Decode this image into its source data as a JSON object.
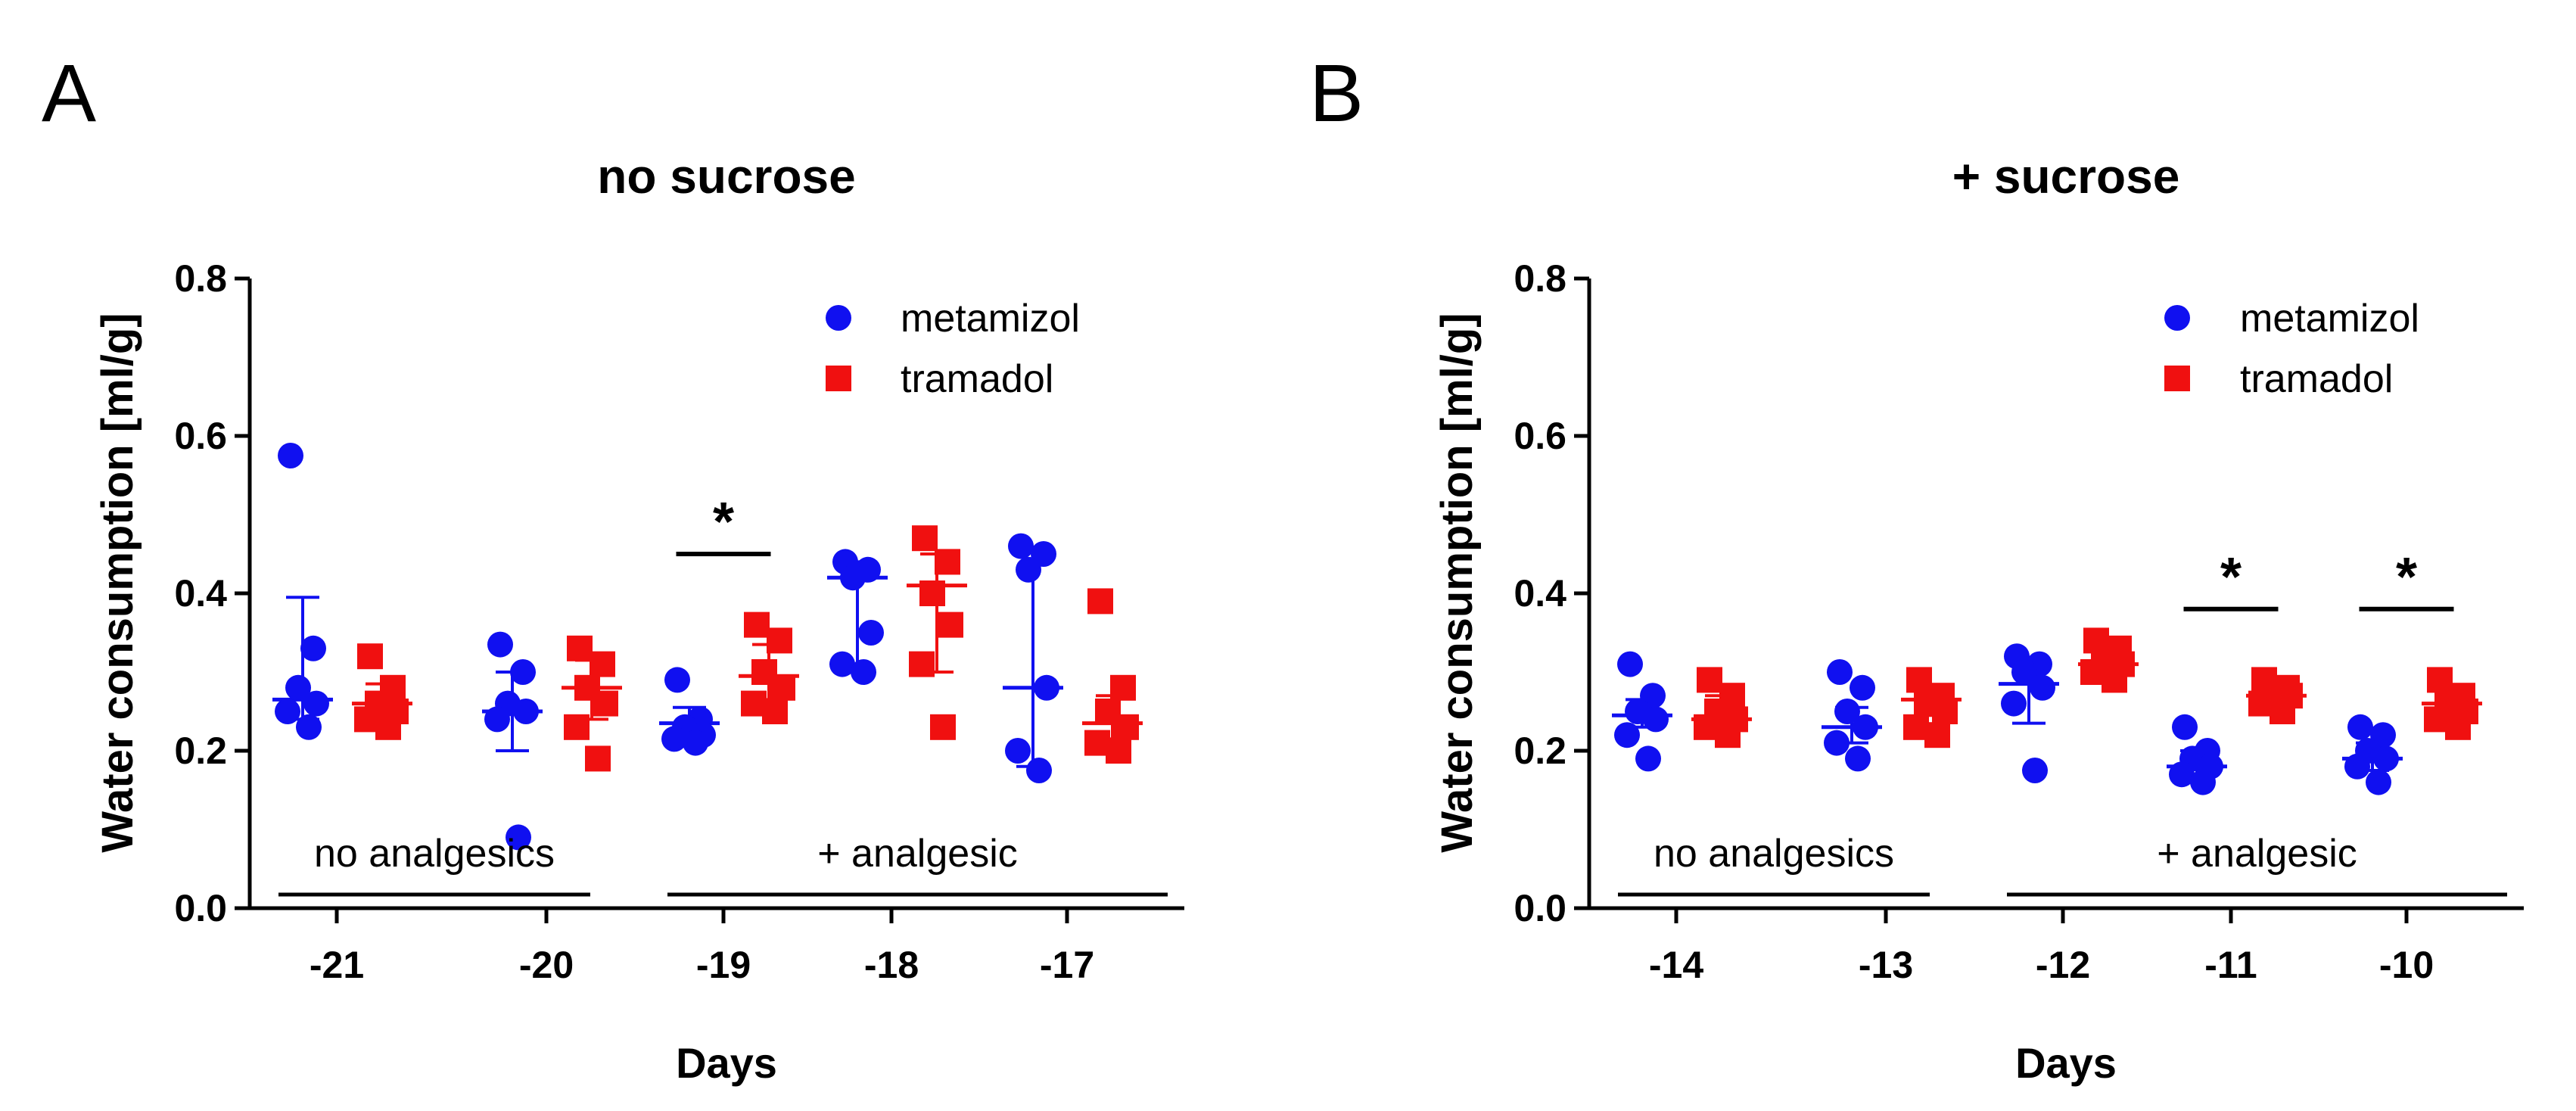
{
  "colors": {
    "metamizol": "#1010F0",
    "tramadol": "#F01010",
    "axis": "#000000"
  },
  "panels": [
    {
      "letter": "A",
      "title": "no sucrose",
      "ylabel": "Water consumption [ml/g]",
      "xlabel": "Days",
      "y_ticks": [
        "0.0",
        "0.2",
        "0.4",
        "0.6",
        "0.8"
      ],
      "legend": {
        "metamizol": "metamizol",
        "tramadol": "tramadol"
      },
      "phase_labels": [
        "no analgesics",
        "+ analgesic"
      ],
      "significance_marker": "*"
    },
    {
      "letter": "B",
      "title": "+ sucrose",
      "ylabel": "Water consumption [ml/g]",
      "xlabel": "Days",
      "y_ticks": [
        "0.0",
        "0.2",
        "0.4",
        "0.6",
        "0.8"
      ],
      "legend": {
        "metamizol": "metamizol",
        "tramadol": "tramadol"
      },
      "phase_labels": [
        "no analgesics",
        "+ analgesic"
      ],
      "significance_marker": "*"
    }
  ],
  "chart_data": [
    {
      "type": "scatter",
      "title": "no sucrose",
      "xlabel": "Days",
      "ylabel": "Water consumption [ml/g]",
      "ylim": [
        0,
        0.8
      ],
      "categories": [
        "-21",
        "-20",
        "-19",
        "-18",
        "-17"
      ],
      "phases": [
        {
          "label": "no analgesics",
          "categories": [
            "-21",
            "-20"
          ]
        },
        {
          "label": "+ analgesic",
          "categories": [
            "-19",
            "-18",
            "-17"
          ]
        }
      ],
      "series": [
        {
          "name": "metamizol",
          "marker": "circle",
          "points": [
            [
              0.575,
              0.33,
              0.28,
              0.26,
              0.25,
              0.23
            ],
            [
              0.335,
              0.3,
              0.26,
              0.25,
              0.24,
              0.09
            ],
            [
              0.29,
              0.24,
              0.23,
              0.22,
              0.215,
              0.21
            ],
            [
              0.44,
              0.43,
              0.42,
              0.35,
              0.31,
              0.3
            ],
            [
              0.46,
              0.45,
              0.43,
              0.28,
              0.2,
              0.175
            ]
          ],
          "center": [
            0.265,
            0.25,
            0.235,
            0.42,
            0.28
          ],
          "error_low": [
            0.24,
            0.2,
            0.215,
            0.3,
            0.18
          ],
          "error_high": [
            0.395,
            0.3,
            0.255,
            0.44,
            0.455
          ]
        },
        {
          "name": "tramadol",
          "marker": "square",
          "points": [
            [
              0.32,
              0.28,
              0.26,
              0.25,
              0.24,
              0.23
            ],
            [
              0.33,
              0.31,
              0.28,
              0.26,
              0.23,
              0.19
            ],
            [
              0.36,
              0.34,
              0.3,
              0.28,
              0.26,
              0.25
            ],
            [
              0.47,
              0.44,
              0.4,
              0.36,
              0.31,
              0.23
            ],
            [
              0.39,
              0.28,
              0.25,
              0.23,
              0.21,
              0.2
            ]
          ],
          "center": [
            0.26,
            0.28,
            0.295,
            0.41,
            0.235
          ],
          "error_low": [
            0.235,
            0.24,
            0.265,
            0.3,
            0.215
          ],
          "error_high": [
            0.285,
            0.315,
            0.335,
            0.45,
            0.27
          ]
        }
      ],
      "significance": [
        {
          "category": "-19",
          "y": 0.45,
          "marker": "*"
        }
      ],
      "legend": "top-right"
    },
    {
      "type": "scatter",
      "title": "+ sucrose",
      "xlabel": "Days",
      "ylabel": "Water consumption [ml/g]",
      "ylim": [
        0,
        0.8
      ],
      "categories": [
        "-14",
        "-13",
        "-12",
        "-11",
        "-10"
      ],
      "phases": [
        {
          "label": "no analgesics",
          "categories": [
            "-14",
            "-13"
          ]
        },
        {
          "label": "+ analgesic",
          "categories": [
            "-12",
            "-11",
            "-10"
          ]
        }
      ],
      "series": [
        {
          "name": "metamizol",
          "marker": "circle",
          "points": [
            [
              0.31,
              0.27,
              0.25,
              0.24,
              0.22,
              0.19
            ],
            [
              0.3,
              0.28,
              0.25,
              0.23,
              0.21,
              0.19
            ],
            [
              0.32,
              0.31,
              0.3,
              0.28,
              0.26,
              0.175
            ],
            [
              0.23,
              0.2,
              0.19,
              0.18,
              0.17,
              0.16
            ],
            [
              0.23,
              0.22,
              0.2,
              0.19,
              0.18,
              0.16
            ]
          ],
          "center": [
            0.245,
            0.23,
            0.285,
            0.18,
            0.19
          ],
          "error_low": [
            0.23,
            0.21,
            0.235,
            0.165,
            0.175
          ],
          "error_high": [
            0.265,
            0.255,
            0.31,
            0.2,
            0.21
          ]
        },
        {
          "name": "tramadol",
          "marker": "square",
          "points": [
            [
              0.29,
              0.27,
              0.25,
              0.24,
              0.23,
              0.22
            ],
            [
              0.29,
              0.27,
              0.26,
              0.25,
              0.23,
              0.22
            ],
            [
              0.34,
              0.33,
              0.32,
              0.31,
              0.3,
              0.29
            ],
            [
              0.29,
              0.28,
              0.27,
              0.27,
              0.26,
              0.25
            ],
            [
              0.29,
              0.27,
              0.26,
              0.25,
              0.24,
              0.23
            ]
          ],
          "center": [
            0.24,
            0.265,
            0.31,
            0.27,
            0.26
          ],
          "error_low": [
            0.225,
            0.245,
            0.295,
            0.26,
            0.245
          ],
          "error_high": [
            0.27,
            0.28,
            0.325,
            0.285,
            0.28
          ]
        }
      ],
      "significance": [
        {
          "category": "-11",
          "y": 0.38,
          "marker": "*"
        },
        {
          "category": "-10",
          "y": 0.38,
          "marker": "*"
        }
      ],
      "legend": "top-right"
    }
  ]
}
